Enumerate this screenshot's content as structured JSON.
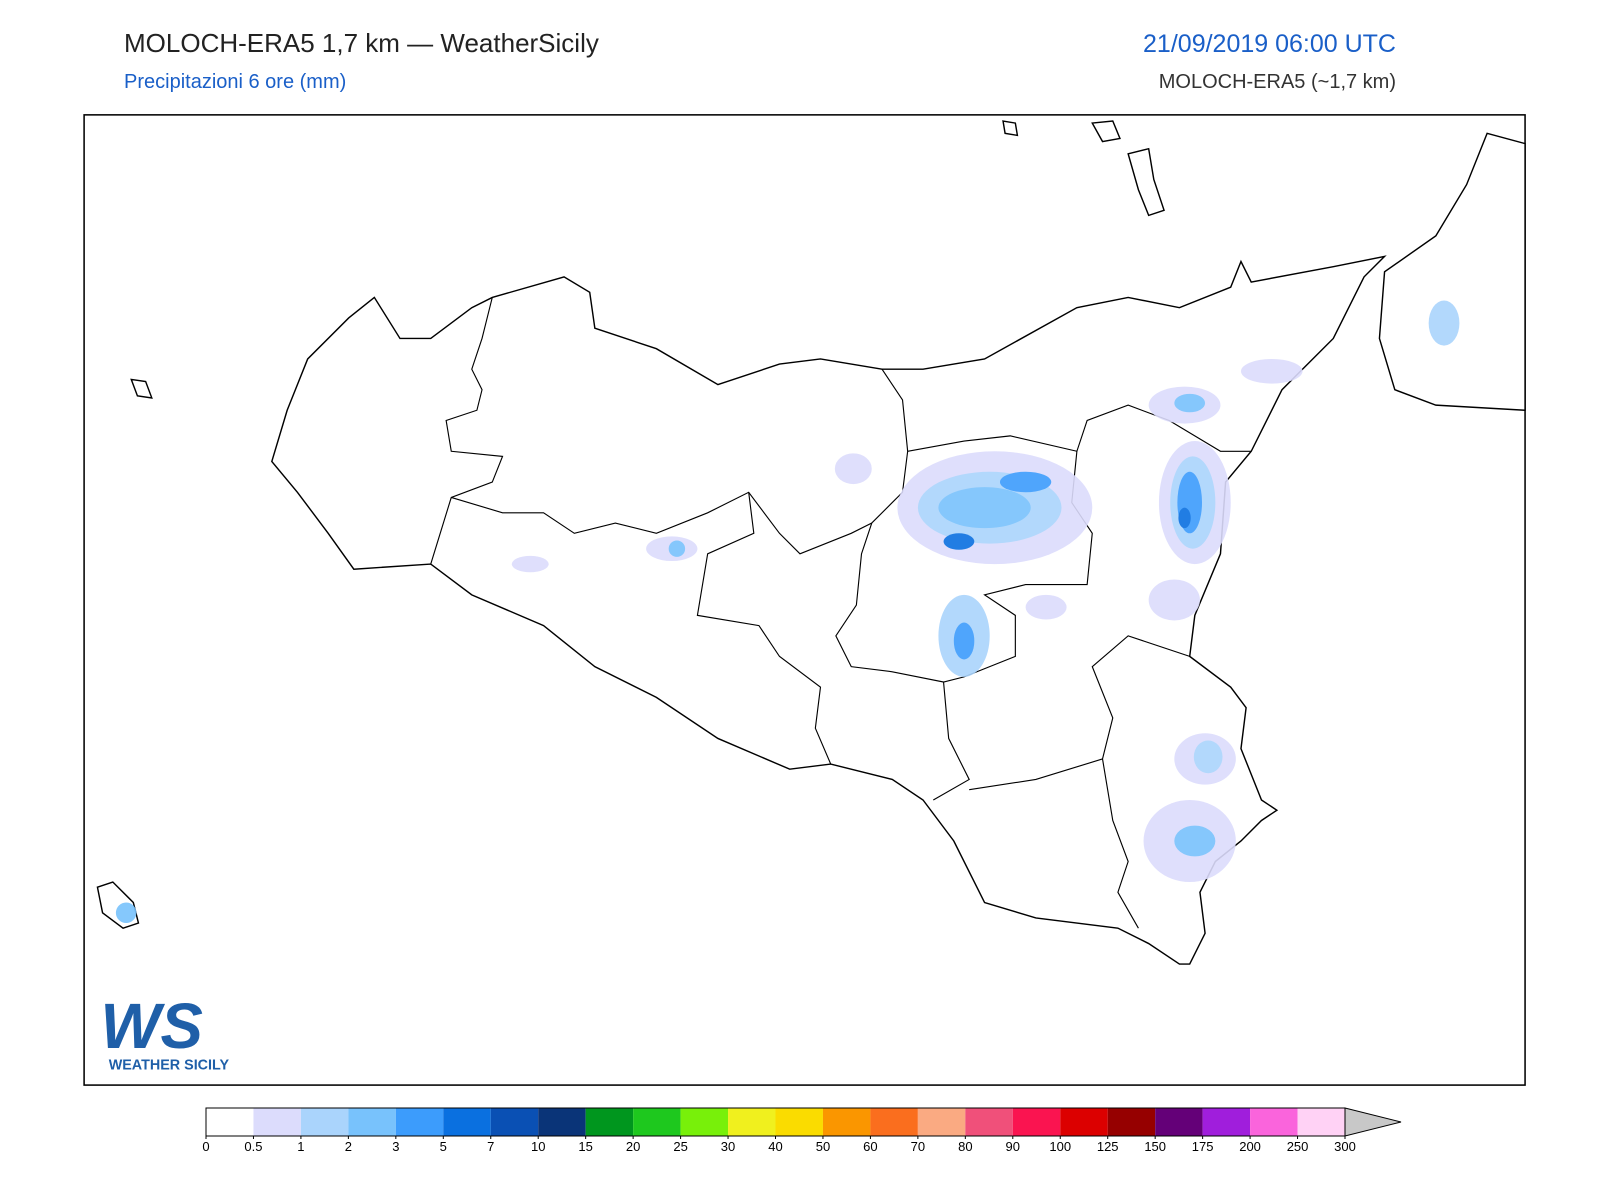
{
  "header": {
    "title": "MOLOCH-ERA5 1,7 km — WeatherSicily",
    "subtitle": "Precipitazioni 6 ore (mm)",
    "datetime": "21/09/2019 06:00 UTC",
    "model": "MOLOCH-ERA5 (~1,7 km)"
  },
  "logo": {
    "mark": "WS",
    "name": "WEATHER SICILY"
  },
  "colorbar": {
    "ticks": [
      0,
      0.5,
      1,
      2,
      3,
      5,
      7,
      10,
      15,
      20,
      25,
      30,
      40,
      50,
      60,
      70,
      80,
      90,
      100,
      125,
      150,
      175,
      200,
      250,
      300
    ],
    "colors": [
      "#ffffff",
      "#dcdcfc",
      "#aad4fc",
      "#78c2fc",
      "#3c9cfc",
      "#0a70e0",
      "#0a50b4",
      "#0a3478",
      "#00961e",
      "#1ec81e",
      "#78f00a",
      "#f0f01e",
      "#fadc00",
      "#fa9600",
      "#fa6e1e",
      "#faaa82",
      "#f0507a",
      "#fa1450",
      "#dc0000",
      "#960000",
      "#640078",
      "#a01edc",
      "#fa64dc",
      "#ffd2f5"
    ],
    "extend_color": "#c8c8c8"
  }
}
